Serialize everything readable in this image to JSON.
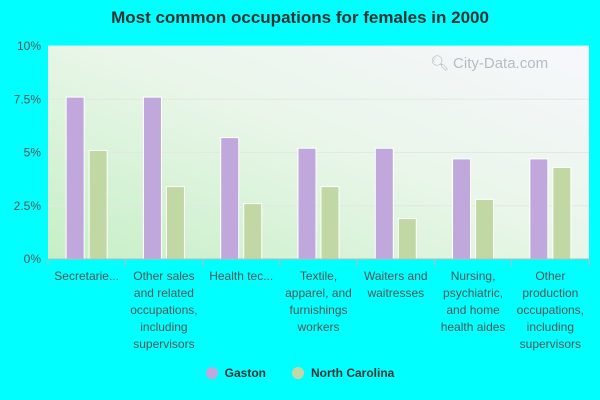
{
  "chart_data": {
    "type": "bar",
    "title": "Most common occupations for females in 2000",
    "categories": [
      "Secretarie...",
      "Other sales and related occupations, including supervisors",
      "Health tec...",
      "Textile, apparel, and furnishings workers",
      "Waiters and waitresses",
      "Nursing, psychiatric, and home health aides",
      "Other production occupations, including supervisors"
    ],
    "series": [
      {
        "name": "Gaston",
        "color": "#c0a8dc",
        "values": [
          7.6,
          7.6,
          5.7,
          5.2,
          5.2,
          4.7,
          4.7
        ]
      },
      {
        "name": "North Carolina",
        "color": "#c2d8a4",
        "values": [
          5.1,
          3.4,
          2.6,
          3.4,
          1.9,
          2.8,
          4.3
        ]
      }
    ],
    "ylim": [
      0,
      10
    ],
    "yticks": [
      "0%",
      "2.5%",
      "5%",
      "7.5%",
      "10%"
    ],
    "grid": true,
    "legend_position": "bottom"
  },
  "watermark": "City-Data.com"
}
